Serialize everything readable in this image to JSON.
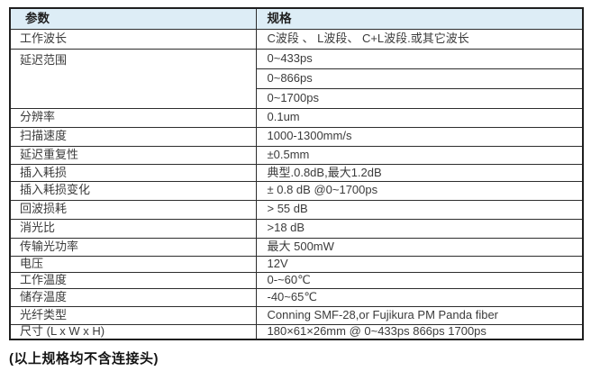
{
  "table": {
    "header": {
      "param": "参数",
      "spec": "规格"
    },
    "rows": [
      {
        "param": "工作波长",
        "spec": "C波段 、 L波段、 C+L波段.或其它波长"
      },
      {
        "param": "延迟范围",
        "spec": "0~433ps"
      },
      {
        "spec": "0~866ps"
      },
      {
        "spec": "0~1700ps"
      },
      {
        "param": "分辨率",
        "spec": "0.1um"
      },
      {
        "param": "扫描速度",
        "spec": "1000-1300mm/s"
      },
      {
        "param": "延迟重复性",
        "spec": "±0.5mm"
      },
      {
        "param": "插入耗损",
        "spec": "典型.0.8dB,最大1.2dB"
      },
      {
        "param": "插入耗损变化",
        "spec": "± 0.8 dB @0~1700ps"
      },
      {
        "param": "回波损耗",
        "spec": "> 55 dB"
      },
      {
        "param": "消光比",
        "spec": ">18 dB"
      },
      {
        "param": "传输光功率",
        "spec": "最大 500mW"
      },
      {
        "param": "电压",
        "spec": "12V"
      },
      {
        "param": "工作温度",
        "spec": "0-~60℃"
      },
      {
        "param": "储存温度",
        "spec": "-40~65℃"
      },
      {
        "param": "光纤类型",
        "spec": "Conning SMF-28,or Fujikura PM Panda fiber"
      },
      {
        "param": "尺寸 (L x W x H)",
        "spec": "180×61×26mm @ 0~433ps 866ps 1700ps"
      }
    ]
  },
  "footnote": {
    "text": "(以上规格均不含连接头)"
  },
  "colors": {
    "header_bg": "#ddedf6",
    "border": "#2d2d2d",
    "text": "#3b3b3b"
  }
}
